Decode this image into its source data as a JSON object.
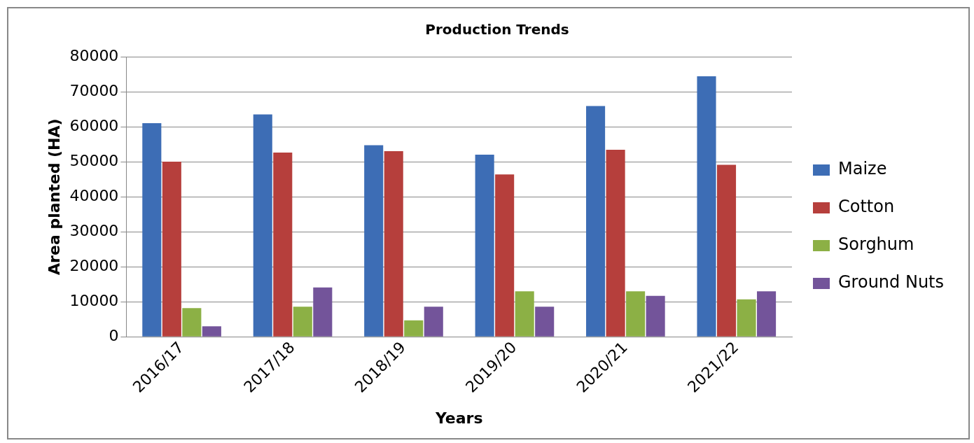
{
  "chart_data": {
    "type": "bar",
    "title": "Production Trends",
    "xlabel": "Years",
    "ylabel": "Area planted (HA)",
    "categories": [
      "2016/17",
      "2017/18",
      "2018/19",
      "2019/20",
      "2020/21",
      "2021/22"
    ],
    "series": [
      {
        "name": "Maize",
        "color": "#3d6db5",
        "values": [
          61000,
          63500,
          54700,
          52000,
          65900,
          74400
        ]
      },
      {
        "name": "Cotton",
        "color": "#b63f3c",
        "values": [
          50000,
          52600,
          53000,
          46400,
          53400,
          49100
        ]
      },
      {
        "name": "Sorghum",
        "color": "#8cb045",
        "values": [
          8200,
          8600,
          4700,
          13000,
          13000,
          10700
        ]
      },
      {
        "name": "Ground Nuts",
        "color": "#73549a",
        "values": [
          3000,
          14100,
          8600,
          8600,
          11700,
          13000
        ]
      }
    ],
    "ylim": [
      0,
      80000
    ],
    "yticks": [
      0,
      10000,
      20000,
      30000,
      40000,
      50000,
      60000,
      70000,
      80000
    ],
    "grid": "y",
    "legend": "right"
  }
}
